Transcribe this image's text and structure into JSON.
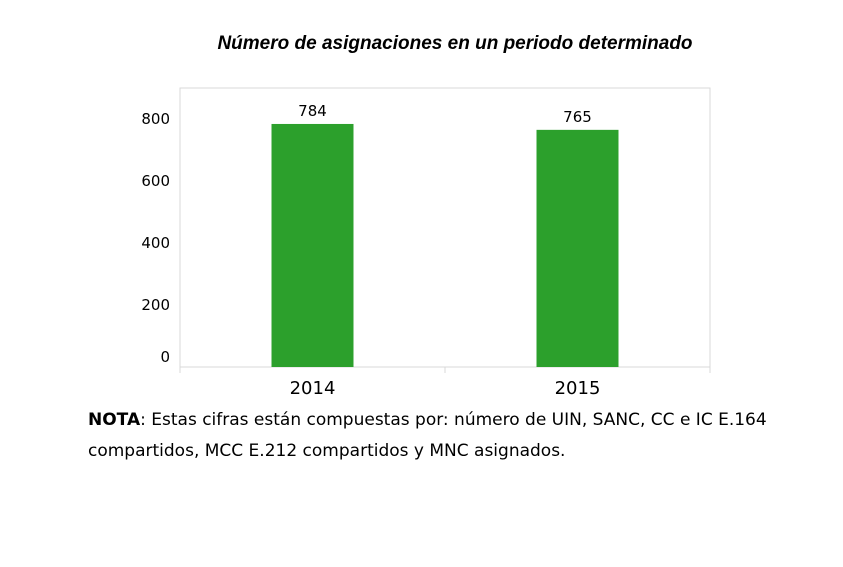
{
  "chart_data": {
    "type": "bar",
    "title": "Número de asignaciones en un periodo determinado",
    "categories": [
      "2014",
      "2015"
    ],
    "values": [
      784,
      765
    ],
    "yticks": [
      0,
      200,
      400,
      600,
      800
    ],
    "ylim": [
      0,
      900
    ],
    "xlabel": "",
    "ylabel": "",
    "grid": false,
    "bar_color": "#2ca02c"
  },
  "note": {
    "bold": "NOTA",
    "text": ": Estas cifras están compuestas por: número de UIN, SANC, CC e IC E.164 compartidos, MCC E.212 compartidos y MNC asignados."
  }
}
